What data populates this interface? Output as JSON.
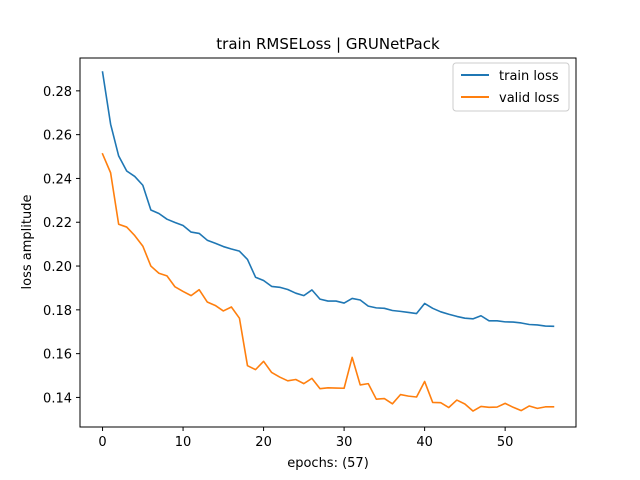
{
  "chart_data": {
    "type": "line",
    "title": "train RMSELoss | GRUNetPack",
    "xlabel": "epochs: (57)",
    "ylabel": "loss amplitude",
    "xlim": [
      -2.8,
      58.8
    ],
    "ylim": [
      0.1265,
      0.295
    ],
    "xticks": [
      0,
      10,
      20,
      30,
      40,
      50
    ],
    "yticks": [
      0.14,
      0.16,
      0.18,
      0.2,
      0.22,
      0.24,
      0.26,
      0.28
    ],
    "grid": false,
    "legend_position": "top-right",
    "x": [
      0,
      1,
      2,
      3,
      4,
      5,
      6,
      7,
      8,
      9,
      10,
      11,
      12,
      13,
      14,
      15,
      16,
      17,
      18,
      19,
      20,
      21,
      22,
      23,
      24,
      25,
      26,
      27,
      28,
      29,
      30,
      31,
      32,
      33,
      34,
      35,
      36,
      37,
      38,
      39,
      40,
      41,
      42,
      43,
      44,
      45,
      46,
      47,
      48,
      49,
      50,
      51,
      52,
      53,
      54,
      55,
      56
    ],
    "series": [
      {
        "name": "train loss",
        "color": "#1f77b4",
        "values": [
          0.2886,
          0.2648,
          0.2503,
          0.2434,
          0.2409,
          0.2369,
          0.2256,
          0.224,
          0.2214,
          0.2199,
          0.2185,
          0.2155,
          0.2149,
          0.2118,
          0.2104,
          0.2089,
          0.2078,
          0.2068,
          0.203,
          0.1949,
          0.1934,
          0.1907,
          0.1903,
          0.1893,
          0.1876,
          0.1865,
          0.1891,
          0.1849,
          0.184,
          0.184,
          0.1831,
          0.1852,
          0.1845,
          0.1817,
          0.1809,
          0.1807,
          0.1797,
          0.1793,
          0.1788,
          0.1783,
          0.1829,
          0.1807,
          0.1791,
          0.178,
          0.177,
          0.1762,
          0.1759,
          0.1773,
          0.175,
          0.175,
          0.1745,
          0.1744,
          0.174,
          0.1733,
          0.1731,
          0.1726,
          0.1725
        ]
      },
      {
        "name": "valid loss",
        "color": "#ff7f0e",
        "values": [
          0.2512,
          0.2426,
          0.2191,
          0.2178,
          0.2139,
          0.2091,
          0.2,
          0.1967,
          0.1955,
          0.1905,
          0.1884,
          0.1865,
          0.1892,
          0.1836,
          0.182,
          0.1795,
          0.1813,
          0.1762,
          0.1545,
          0.1527,
          0.1565,
          0.1514,
          0.1493,
          0.1476,
          0.1482,
          0.1463,
          0.1487,
          0.144,
          0.1444,
          0.1443,
          0.1442,
          0.1583,
          0.1457,
          0.1463,
          0.1392,
          0.1395,
          0.1371,
          0.1413,
          0.1406,
          0.1402,
          0.1473,
          0.1377,
          0.1376,
          0.1354,
          0.1388,
          0.137,
          0.1338,
          0.1359,
          0.1355,
          0.1356,
          0.1373,
          0.1355,
          0.134,
          0.1361,
          0.135,
          0.1357,
          0.1357
        ]
      }
    ]
  }
}
